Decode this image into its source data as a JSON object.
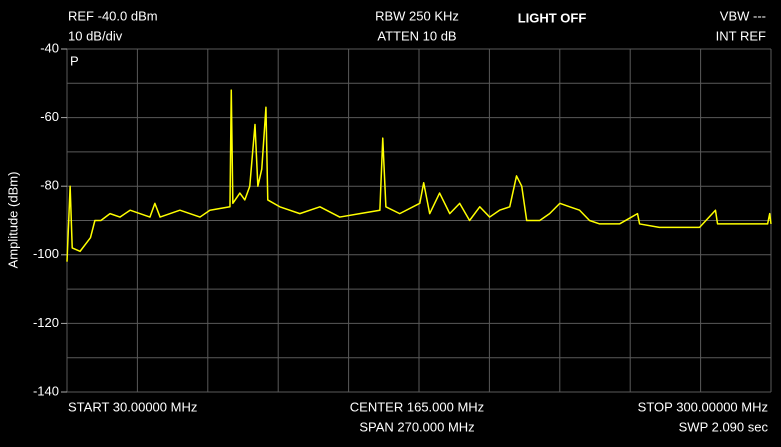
{
  "chart_data": {
    "type": "line",
    "ylabel": "Amplitude (dBm)",
    "ref_level": "REF -40.0 dBm",
    "scale": "10 dB/div",
    "rbw": "RBW 250 KHz",
    "atten": "ATTEN 10 dB",
    "light": "LIGHT OFF",
    "vbw": "VBW ---",
    "ref_source": "INT REF",
    "detector": "P",
    "start": "START 30.00000 MHz",
    "center": "CENTER 165.000 MHz",
    "span": "SPAN 270.000 MHz",
    "stop": "STOP 300.00000 MHz",
    "sweep": "SWP 2.090 sec",
    "xlim": [
      30,
      300
    ],
    "ylim": [
      -140,
      -40
    ],
    "yticks": [
      -140,
      -120,
      -100,
      -80,
      -60,
      -40
    ],
    "grid": true,
    "x_divisions": 10,
    "y_divisions": 10,
    "x": [
      30,
      31.2,
      32,
      35,
      39,
      40.7,
      43,
      46.5,
      50.3,
      54.2,
      61.8,
      63.7,
      65.7,
      73.3,
      81,
      84.8,
      92.5,
      93,
      93.6,
      96.3,
      98.2,
      100.1,
      102.1,
      103.2,
      104.7,
      106.3,
      107,
      111.6,
      119.3,
      127,
      134.6,
      142.3,
      150,
      151.1,
      152.3,
      157.6,
      165.3,
      166.8,
      169.1,
      172.9,
      176.8,
      180.6,
      184.4,
      188.3,
      192.1,
      195.9,
      199.8,
      202.4,
      204.4,
      206.3,
      211.3,
      215.1,
      219,
      222.8,
      226.6,
      230.4,
      234.3,
      241.9,
      248.8,
      249.6,
      257.2,
      272.6,
      278.7,
      279.5,
      287.9,
      298.7,
      299.5,
      300
    ],
    "series": [
      {
        "color": "#ffff00",
        "values": [
          -102,
          -80,
          -98,
          -99,
          -95,
          -90,
          -90,
          -88,
          -89,
          -87,
          -89,
          -85,
          -89,
          -87,
          -89,
          -87,
          -86,
          -52,
          -85,
          -82,
          -84,
          -80,
          -62,
          -80,
          -75,
          -57,
          -84,
          -86,
          -88,
          -86,
          -89,
          -88,
          -87,
          -66,
          -86,
          -88,
          -85,
          -79,
          -88,
          -82,
          -88,
          -85,
          -90,
          -86,
          -89,
          -87,
          -86,
          -77,
          -80,
          -90,
          -90,
          -88,
          -85,
          -86,
          -87,
          -90,
          -91,
          -91,
          -88,
          -91,
          -92,
          -92,
          -87,
          -91,
          -91,
          -91,
          -88,
          -91
        ]
      }
    ]
  }
}
